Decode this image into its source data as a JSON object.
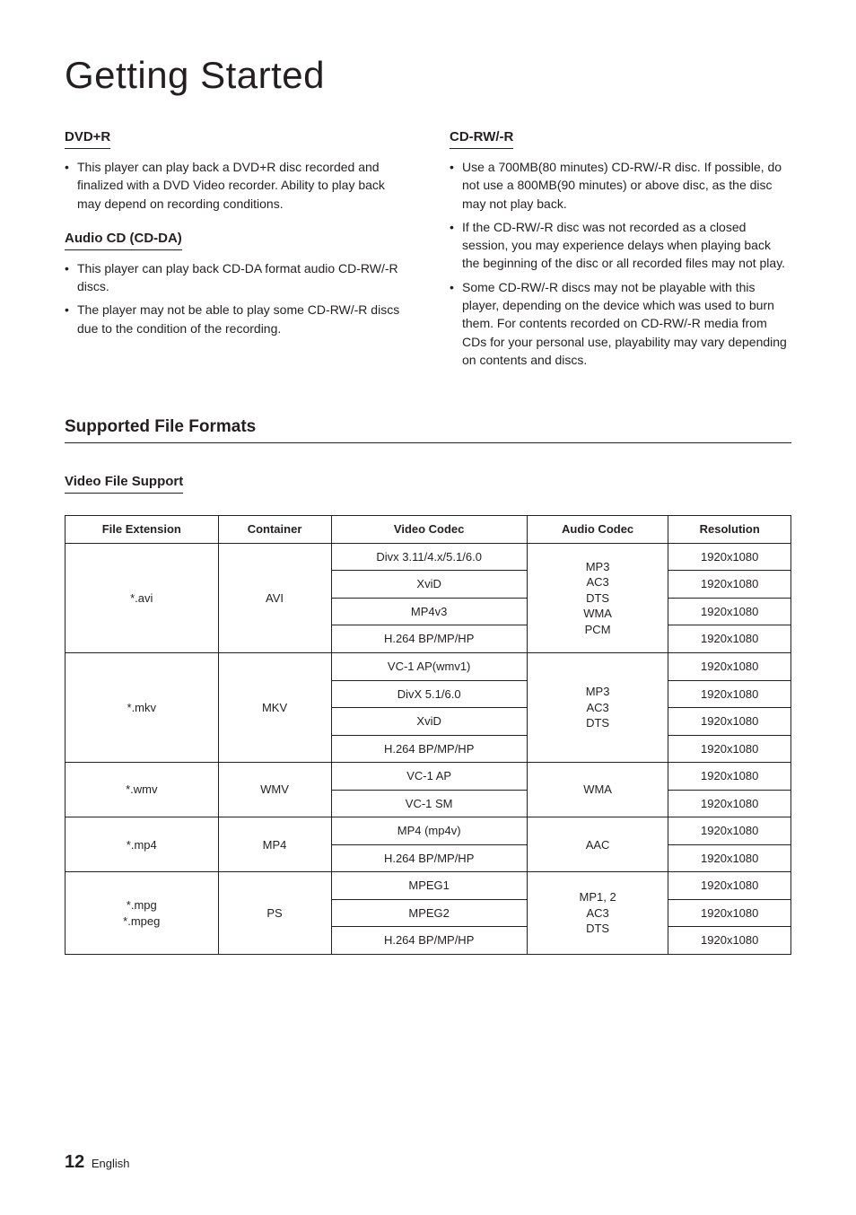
{
  "page": {
    "title": "Getting Started",
    "section_heading": "Supported File Formats",
    "video_support_heading": "Video File Support",
    "page_number": "12",
    "page_lang": "English"
  },
  "left_col": {
    "dvd_r": {
      "heading": "DVD+R",
      "items": [
        "This player can play back a DVD+R disc recorded and finalized with a DVD Video recorder. Ability to play back may depend on recording conditions."
      ]
    },
    "audio_cd": {
      "heading": "Audio CD (CD-DA)",
      "items": [
        "This player can play back CD-DA format audio CD-RW/-R discs.",
        "The player may not be able to play some CD-RW/-R discs due to the condition of the recording."
      ]
    }
  },
  "right_col": {
    "cd_rw": {
      "heading": "CD-RW/-R",
      "items": [
        "Use a 700MB(80 minutes) CD-RW/-R disc. If possible, do not use a 800MB(90 minutes) or above disc, as the disc may not play back.",
        "If the CD-RW/-R disc was not recorded as a closed session, you may experience delays when playing back the beginning of the disc or all recorded files may not play.",
        "Some CD-RW/-R discs may not be playable with this player, depending on the device which was used to burn them. For contents recorded on CD-RW/-R media from CDs for your personal use, playability may vary depending on contents and discs."
      ]
    }
  },
  "table": {
    "columns": [
      "File Extension",
      "Container",
      "Video Codec",
      "Audio Codec",
      "Resolution"
    ],
    "groups": [
      {
        "ext": "*.avi",
        "container": "AVI",
        "audio": "MP3\nAC3\nDTS\nWMA\nPCM",
        "rows": [
          {
            "video": "Divx 3.11/4.x/5.1/6.0",
            "res": "1920x1080"
          },
          {
            "video": "XviD",
            "res": "1920x1080"
          },
          {
            "video": "MP4v3",
            "res": "1920x1080"
          },
          {
            "video": "H.264 BP/MP/HP",
            "res": "1920x1080"
          }
        ]
      },
      {
        "ext": "*.mkv",
        "container": "MKV",
        "audio": "MP3\nAC3\nDTS",
        "rows": [
          {
            "video": "VC-1 AP(wmv1)",
            "res": "1920x1080"
          },
          {
            "video": "DivX 5.1/6.0",
            "res": "1920x1080"
          },
          {
            "video": "XviD",
            "res": "1920x1080"
          },
          {
            "video": "H.264 BP/MP/HP",
            "res": "1920x1080"
          }
        ]
      },
      {
        "ext": "*.wmv",
        "container": "WMV",
        "audio": "WMA",
        "rows": [
          {
            "video": "VC-1 AP",
            "res": "1920x1080"
          },
          {
            "video": "VC-1 SM",
            "res": "1920x1080"
          }
        ]
      },
      {
        "ext": "*.mp4",
        "container": "MP4",
        "audio": "AAC",
        "rows": [
          {
            "video": "MP4 (mp4v)",
            "res": "1920x1080"
          },
          {
            "video": "H.264 BP/MP/HP",
            "res": "1920x1080"
          }
        ]
      },
      {
        "ext": "*.mpg\n*.mpeg",
        "container": "PS",
        "audio": "MP1, 2\nAC3\nDTS",
        "rows": [
          {
            "video": "MPEG1",
            "res": "1920x1080"
          },
          {
            "video": "MPEG2",
            "res": "1920x1080"
          },
          {
            "video": "H.264 BP/MP/HP",
            "res": "1920x1080"
          }
        ]
      }
    ]
  }
}
